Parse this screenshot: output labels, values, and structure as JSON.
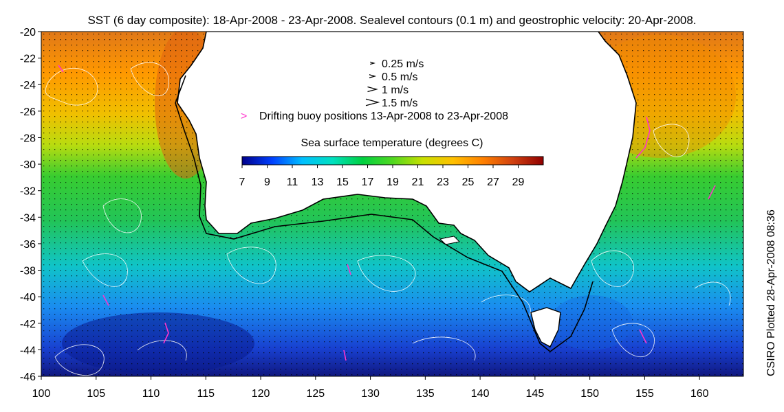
{
  "title": "SST (6 day composite): 18-Apr-2008 - 23-Apr-2008. Sealevel contours (0.1 m) and geostrophic velocity: 20-Apr-2008.",
  "credit": "CSIRO Plotted 28-Apr-2008 08:36",
  "map": {
    "lon_range": [
      100,
      164
    ],
    "lat_range": [
      -46,
      -20
    ],
    "x_ticks": [
      100,
      105,
      110,
      115,
      120,
      125,
      130,
      135,
      140,
      145,
      150,
      155,
      160
    ],
    "y_ticks": [
      -20,
      -22,
      -24,
      -26,
      -28,
      -30,
      -32,
      -34,
      -36,
      -38,
      -40,
      -42,
      -44,
      -46
    ],
    "land_color": "#ffffff",
    "coast_color": "#000000",
    "contour_color": "#ffffff",
    "buoy_color": "#ff33cc"
  },
  "legend": {
    "velocity": [
      {
        "label": "0.25 m/s",
        "speed": 0.25
      },
      {
        "label": "0.5 m/s",
        "speed": 0.5
      },
      {
        "label": "1 m/s",
        "speed": 1
      },
      {
        "label": "1.5 m/s",
        "speed": 1.5
      }
    ],
    "buoy_symbol": ">",
    "buoy_label": "Drifting buoy positions 13-Apr-2008 to 23-Apr-2008"
  },
  "colorbar": {
    "title": "Sea surface temperature (degrees C)",
    "range": [
      7,
      31
    ],
    "tick_labels": [
      7,
      9,
      11,
      13,
      15,
      17,
      19,
      21,
      23,
      25,
      27,
      29
    ],
    "stops": [
      "#00008b",
      "#0040ff",
      "#00bfff",
      "#00e0c0",
      "#00d040",
      "#50d820",
      "#c8e000",
      "#ffc000",
      "#ff8000",
      "#d04010",
      "#900000"
    ]
  }
}
